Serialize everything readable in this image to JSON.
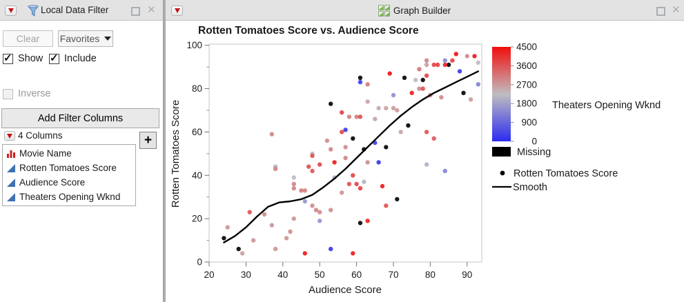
{
  "filter_panel": {
    "title": "Local Data Filter",
    "clear_label": "Clear",
    "favorites_label": "Favorites",
    "show_label": "Show",
    "include_label": "Include",
    "inverse_label": "Inverse",
    "add_filter_columns_label": "Add Filter Columns",
    "columns_count_label": "4 Columns",
    "add_column_button_label": "+",
    "columns": [
      {
        "name": "Movie Name",
        "type": "nominal"
      },
      {
        "name": "Rotten Tomatoes Score",
        "type": "continuous"
      },
      {
        "name": "Audience Score",
        "type": "continuous"
      },
      {
        "name": "Theaters Opening Wknd",
        "type": "continuous"
      }
    ]
  },
  "graph_panel": {
    "window_title": "Graph Builder"
  },
  "chart_data": {
    "type": "scatter",
    "title": "Rotten Tomatoes Score vs. Audience Score",
    "xlabel": "Audience Score",
    "ylabel": "Rotten Tomatoes Score",
    "xlim": [
      19.7,
      93.9
    ],
    "ylim": [
      0,
      100.5
    ],
    "x_ticks": [
      20,
      30,
      40,
      50,
      60,
      70,
      80,
      90
    ],
    "y_ticks": [
      0,
      20,
      40,
      60,
      80,
      100
    ],
    "y_minor_ticks": [
      10,
      30,
      50,
      70,
      90
    ],
    "grid": false,
    "legend_position": "right",
    "color_legend": {
      "label": "Theaters Opening Wknd",
      "min": 0,
      "max": 4500,
      "ticks": [
        4500,
        3600,
        2700,
        1800,
        900,
        0
      ],
      "low_color": "#2b2bf0",
      "mid_color": "#c0bdc0",
      "high_color": "#f20d0d",
      "missing_label": "Missing",
      "missing_color": "#000000"
    },
    "series_legend": [
      {
        "label": "Rotten Tomatoes Score",
        "marker": "dot"
      },
      {
        "label": "Smooth",
        "marker": "line"
      }
    ],
    "points": [
      [
        24,
        11,
        null
      ],
      [
        28,
        6,
        null
      ],
      [
        53,
        73,
        null
      ],
      [
        59,
        57,
        null
      ],
      [
        62,
        52,
        null
      ],
      [
        68,
        53,
        null
      ],
      [
        61,
        18,
        null
      ],
      [
        71,
        29,
        null
      ],
      [
        74,
        63,
        null
      ],
      [
        61,
        85,
        null
      ],
      [
        73,
        85,
        null
      ],
      [
        78,
        84,
        null
      ],
      [
        85,
        91,
        null
      ],
      [
        89,
        78,
        null
      ],
      [
        53,
        6,
        100
      ],
      [
        57,
        61,
        200
      ],
      [
        66,
        46,
        100
      ],
      [
        65,
        55,
        300
      ],
      [
        61,
        83,
        200
      ],
      [
        88,
        88,
        150
      ],
      [
        84,
        42,
        1300
      ],
      [
        93,
        82,
        1300
      ],
      [
        70,
        77,
        1500
      ],
      [
        46,
        28,
        1600
      ],
      [
        50,
        19,
        1600
      ],
      [
        84,
        93,
        1400
      ],
      [
        38,
        44,
        2100
      ],
      [
        43,
        39,
        2200
      ],
      [
        48,
        50,
        2100
      ],
      [
        54,
        39,
        2000
      ],
      [
        79,
        45,
        2000
      ],
      [
        62,
        37,
        2100
      ],
      [
        76,
        84,
        2200
      ],
      [
        93,
        92,
        2200
      ],
      [
        63,
        74,
        2600
      ],
      [
        65,
        66,
        2600
      ],
      [
        66,
        71,
        2500
      ],
      [
        68,
        71,
        2600
      ],
      [
        70,
        71,
        2700
      ],
      [
        71,
        70,
        2700
      ],
      [
        72,
        60,
        2600
      ],
      [
        91,
        75,
        2700
      ],
      [
        79,
        91,
        2700
      ],
      [
        25,
        16,
        2800
      ],
      [
        32,
        10,
        2800
      ],
      [
        29,
        4,
        2700
      ],
      [
        37,
        17,
        2800
      ],
      [
        41,
        11,
        2800
      ],
      [
        42,
        14,
        2900
      ],
      [
        38,
        6,
        2800
      ],
      [
        43,
        20,
        2800
      ],
      [
        35,
        22,
        2900
      ],
      [
        56,
        32,
        2800
      ],
      [
        52,
        56,
        2900
      ],
      [
        53,
        52,
        3000
      ],
      [
        57,
        53,
        2900
      ],
      [
        53,
        24,
        2900
      ],
      [
        48,
        26,
        2900
      ],
      [
        49,
        24,
        3000
      ],
      [
        50,
        23,
        2900
      ],
      [
        63,
        46,
        2900
      ],
      [
        83,
        76,
        2900
      ],
      [
        77,
        80,
        2900
      ],
      [
        90,
        95,
        2900
      ],
      [
        43,
        34,
        3000
      ],
      [
        43,
        36,
        3000
      ],
      [
        45,
        33,
        3100
      ],
      [
        46,
        33,
        3000
      ],
      [
        38,
        43,
        3000
      ],
      [
        37,
        59,
        3000
      ],
      [
        57,
        48,
        3000
      ],
      [
        58,
        67,
        3100
      ],
      [
        60,
        67,
        3100
      ],
      [
        63,
        82,
        3100
      ],
      [
        80,
        77,
        3100
      ],
      [
        79,
        93,
        3000
      ],
      [
        77,
        89,
        3200
      ],
      [
        31,
        23,
        3600
      ],
      [
        47,
        44,
        3700
      ],
      [
        48,
        42,
        3600
      ],
      [
        50,
        45,
        3800
      ],
      [
        48,
        49,
        3700
      ],
      [
        56,
        60,
        3800
      ],
      [
        56,
        69,
        3900
      ],
      [
        61,
        67,
        3700
      ],
      [
        59,
        40,
        3800
      ],
      [
        58,
        36,
        3700
      ],
      [
        60,
        36,
        3800
      ],
      [
        61,
        34,
        3900
      ],
      [
        68,
        26,
        3700
      ],
      [
        78,
        80,
        3700
      ],
      [
        79,
        60,
        3700
      ],
      [
        81,
        57,
        3600
      ],
      [
        79,
        86,
        3800
      ],
      [
        81,
        91,
        3800
      ],
      [
        82,
        91,
        3900
      ],
      [
        86,
        93,
        3900
      ],
      [
        46,
        4,
        4400
      ],
      [
        59,
        4,
        4400
      ],
      [
        63,
        19,
        4300
      ],
      [
        67,
        35,
        4400
      ],
      [
        54,
        46,
        4400
      ],
      [
        69,
        87,
        4500
      ],
      [
        87,
        96,
        4500
      ],
      [
        92,
        95,
        4400
      ],
      [
        84,
        91,
        4300
      ],
      [
        75,
        78,
        4300
      ]
    ],
    "smooth": [
      [
        24,
        9
      ],
      [
        27,
        12
      ],
      [
        30,
        16
      ],
      [
        33,
        21
      ],
      [
        36,
        25.5
      ],
      [
        39,
        27.5
      ],
      [
        42,
        28
      ],
      [
        45,
        29
      ],
      [
        48,
        31
      ],
      [
        51,
        34.5
      ],
      [
        54,
        38.5
      ],
      [
        57,
        43
      ],
      [
        60,
        48
      ],
      [
        63,
        53
      ],
      [
        66,
        58
      ],
      [
        69,
        63
      ],
      [
        72,
        67.5
      ],
      [
        75,
        71.5
      ],
      [
        78,
        75
      ],
      [
        81,
        78
      ],
      [
        84,
        80.5
      ],
      [
        87,
        83
      ],
      [
        90,
        85.5
      ],
      [
        93,
        88
      ]
    ]
  }
}
